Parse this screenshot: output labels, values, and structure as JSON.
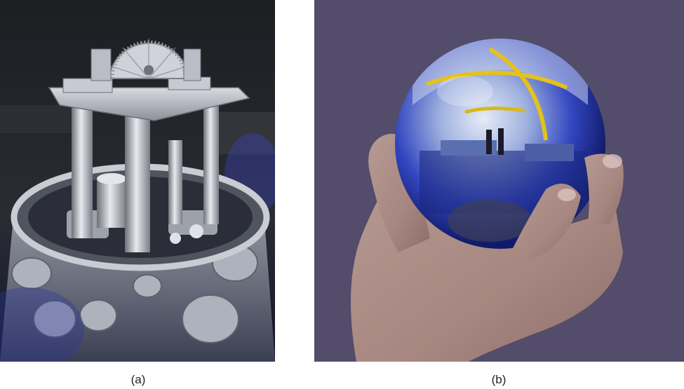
{
  "figure": {
    "panels": [
      {
        "label": "(a)",
        "subject": "kibble-balance-apparatus"
      },
      {
        "label": "(b)",
        "subject": "silicon-sphere-in-hand"
      }
    ],
    "colors": {
      "background": "#ffffff",
      "panel_b_background": "#534c6a",
      "metal": "#b9bcc4",
      "sphere_blue": "#2a3fb8"
    }
  }
}
